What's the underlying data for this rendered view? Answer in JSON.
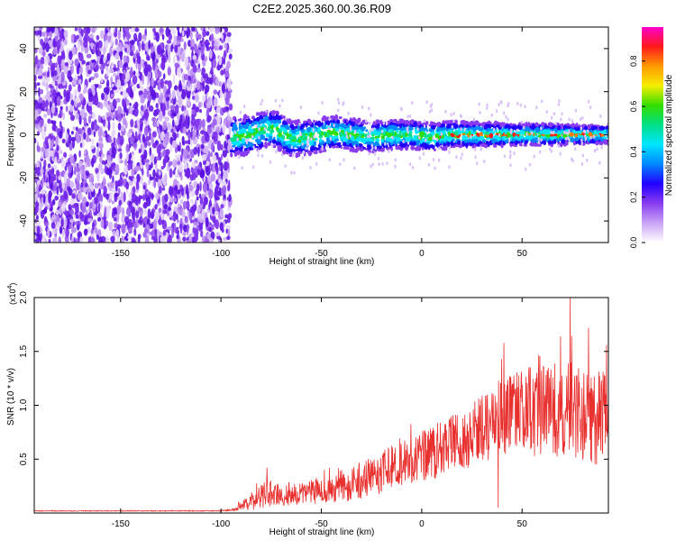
{
  "title": "C2E2.2025.360.00.36.R09",
  "colors": {
    "background": "#ffffff",
    "snr_line": "#e8312f",
    "scatter_purple": "#6a1ee8",
    "colormap": [
      "#ffffff",
      "#c9a4f5",
      "#8a3cf0",
      "#2200ff",
      "#0088ff",
      "#00e5ff",
      "#00e08a",
      "#33dd00",
      "#f5ee00",
      "#ff9a00",
      "#ff1a1a",
      "#ff00cc"
    ]
  },
  "chart_data": [
    {
      "type": "heatmap",
      "name": "spectrogram",
      "title": "C2E2.2025.360.00.36.R09",
      "xlabel": "Height of straight line (km)",
      "ylabel": "Frequency (Hz)",
      "xlim": [
        -193,
        93
      ],
      "ylim": [
        -50,
        50
      ],
      "xticks": [
        -150,
        -100,
        -50,
        0,
        50
      ],
      "yticks": [
        -40,
        -20,
        0,
        20,
        40
      ],
      "noise_region_x": [
        -193,
        -95
      ],
      "signal_track": {
        "x": [
          -95,
          -85,
          -78,
          -72,
          -65,
          -55,
          -45,
          -35,
          -25,
          -15,
          -5,
          5,
          15,
          30,
          50,
          70,
          93
        ],
        "y": [
          -1,
          0,
          3,
          2,
          -2,
          -1,
          1,
          0,
          -1,
          0,
          0,
          -1,
          0,
          0,
          0,
          0,
          0
        ]
      },
      "colorbar": {
        "label": "Normalized spectral amplitude",
        "range": [
          0,
          0.95
        ],
        "ticks": [
          0.0,
          0.2,
          0.4,
          0.6,
          0.8
        ]
      }
    },
    {
      "type": "line",
      "name": "snr",
      "xlabel": "Height of straight line (km)",
      "ylabel": "SNR (10 * v/v)",
      "scale_label": "(x10",
      "scale_exponent": "4",
      "scale_suffix": ")",
      "xlim": [
        -193,
        93
      ],
      "ylim": [
        0,
        2.0
      ],
      "xticks": [
        -150,
        -100,
        -50,
        0,
        50
      ],
      "yticks": [
        0.5,
        1.0,
        1.5,
        2.0
      ],
      "ytick_labels": [
        "0.5",
        "1.0",
        "1.5",
        "2.0"
      ],
      "envelope": {
        "x": [
          -193,
          -110,
          -100,
          -95,
          -90,
          -85,
          -80,
          -75,
          -70,
          -60,
          -50,
          -40,
          -30,
          -20,
          -10,
          0,
          10,
          20,
          30,
          40,
          50,
          60,
          70,
          80,
          93
        ],
        "mean": [
          0.02,
          0.02,
          0.02,
          0.03,
          0.06,
          0.1,
          0.16,
          0.18,
          0.16,
          0.18,
          0.2,
          0.25,
          0.3,
          0.38,
          0.45,
          0.52,
          0.6,
          0.68,
          0.78,
          0.88,
          0.92,
          0.95,
          0.95,
          0.92,
          0.9
        ],
        "spread": [
          0.004,
          0.004,
          0.005,
          0.01,
          0.04,
          0.08,
          0.12,
          0.12,
          0.1,
          0.1,
          0.12,
          0.15,
          0.18,
          0.2,
          0.22,
          0.24,
          0.26,
          0.28,
          0.32,
          0.38,
          0.42,
          0.44,
          0.46,
          0.46,
          0.46
        ]
      },
      "peaks": [
        {
          "x": 74,
          "y": 2.0
        },
        {
          "x": 83,
          "y": 1.72
        },
        {
          "x": 41,
          "y": 1.58
        },
        {
          "x": 92,
          "y": 1.56
        },
        {
          "x": 38,
          "y": 0.05
        },
        {
          "x": -77,
          "y": 0.42
        }
      ]
    }
  ]
}
